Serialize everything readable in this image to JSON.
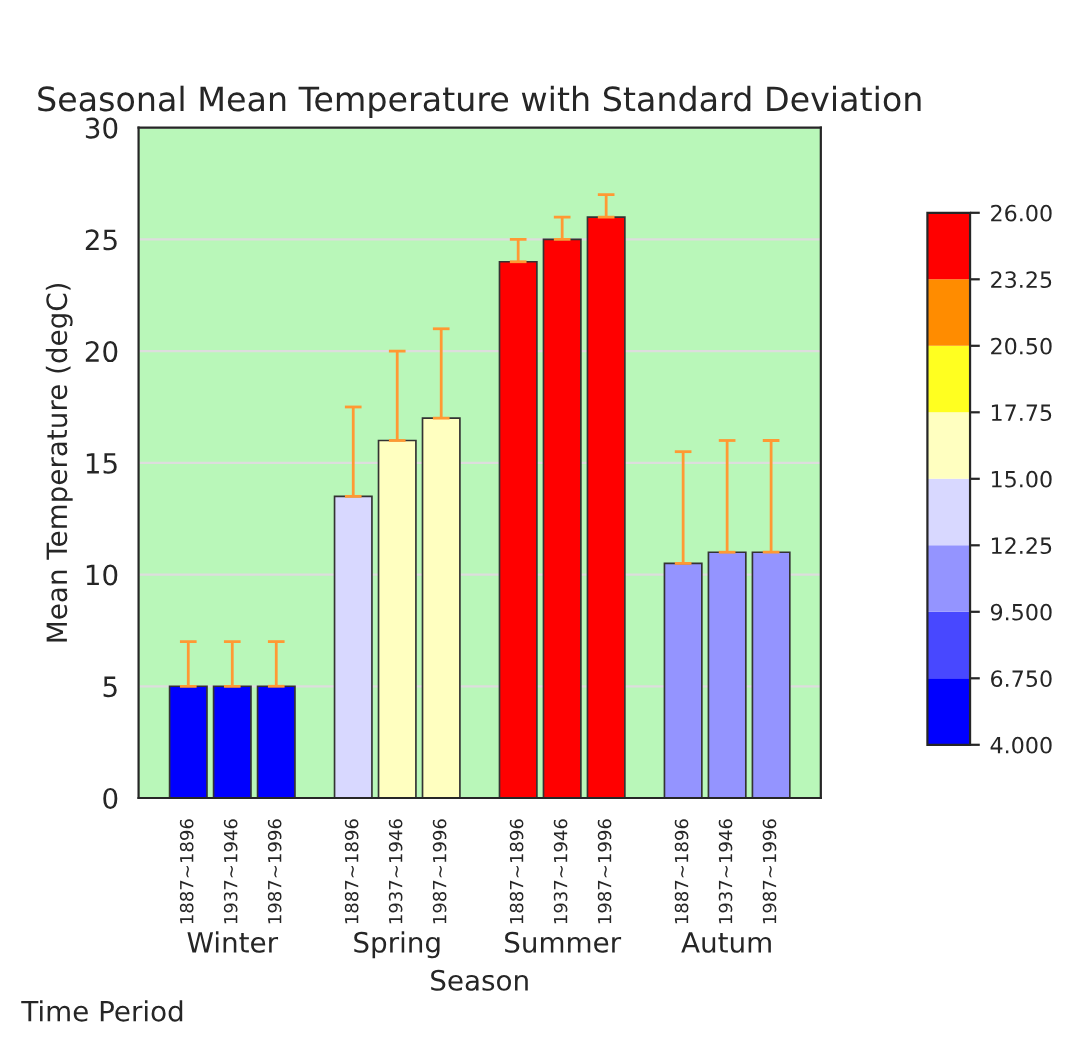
{
  "chart_data": {
    "type": "bar",
    "title": "Seasonal Mean Temperature with Standard Deviation",
    "xlabel": "Season",
    "ylabel": "Mean Temperature (degC)",
    "categories": [
      "Winter",
      "Spring",
      "Summer",
      "Autum"
    ],
    "series": [
      {
        "name": "1887~1896",
        "values": [
          5,
          13.5,
          24,
          10.5
        ],
        "errors": [
          2,
          4,
          1,
          5
        ],
        "colors": [
          "#0000ff",
          "#d8d8ff",
          "#ff0000",
          "#9494ff"
        ]
      },
      {
        "name": "1937~1946",
        "values": [
          5,
          16,
          25,
          11
        ],
        "errors": [
          2,
          4,
          1,
          5
        ],
        "colors": [
          "#0000ff",
          "#ffffc0",
          "#ff0000",
          "#9494ff"
        ]
      },
      {
        "name": "1987~1996",
        "values": [
          5,
          17,
          26,
          11
        ],
        "errors": [
          2,
          4,
          1,
          5
        ],
        "colors": [
          "#0000ff",
          "#ffffc0",
          "#ff0000",
          "#9494ff"
        ]
      }
    ],
    "annotations": [
      "Time Period"
    ],
    "ylim": [
      0,
      30
    ],
    "yticks": [
      0,
      5,
      10,
      15,
      20,
      25,
      30
    ],
    "clim": [
      4,
      26
    ],
    "cticks": [
      {
        "value": 4,
        "label": "4.000"
      },
      {
        "value": 6.75,
        "label": "6.750"
      },
      {
        "value": 9.5,
        "label": "9.500"
      },
      {
        "value": 12.25,
        "label": "12.25"
      },
      {
        "value": 15,
        "label": "15.00"
      },
      {
        "value": 17.75,
        "label": "17.75"
      },
      {
        "value": 20.5,
        "label": "20.50"
      },
      {
        "value": 23.25,
        "label": "23.25"
      },
      {
        "value": 26,
        "label": "26.00"
      }
    ],
    "grid": "y",
    "legend": false
  }
}
